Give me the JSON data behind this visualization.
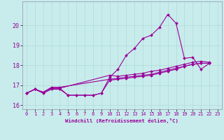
{
  "xlabel": "Windchill (Refroidissement éolien,°C)",
  "background_color": "#c8ecec",
  "grid_color": "#b0d8d8",
  "line_color": "#990099",
  "xlim": [
    -0.5,
    23.5
  ],
  "ylim": [
    15.8,
    21.2
  ],
  "yticks": [
    16,
    17,
    18,
    19,
    20
  ],
  "xticks": [
    0,
    1,
    2,
    3,
    4,
    5,
    6,
    7,
    8,
    9,
    10,
    11,
    12,
    13,
    14,
    15,
    16,
    17,
    18,
    19,
    20,
    21,
    22,
    23
  ],
  "series": [
    {
      "x": [
        0,
        1,
        2,
        3,
        4,
        5,
        6,
        7,
        8,
        9,
        10,
        11,
        12,
        13,
        14,
        15,
        16,
        17,
        18,
        19,
        20,
        21,
        22
      ],
      "y": [
        16.6,
        16.8,
        16.6,
        16.8,
        16.8,
        16.5,
        16.5,
        16.5,
        16.5,
        16.6,
        17.4,
        17.8,
        18.5,
        18.85,
        19.35,
        19.5,
        19.9,
        20.55,
        20.1,
        18.35,
        18.4,
        17.8,
        18.1
      ]
    },
    {
      "x": [
        0,
        1,
        2,
        3,
        4,
        10,
        11,
        12,
        13,
        14,
        15,
        16,
        17,
        18,
        19,
        20,
        21,
        22
      ],
      "y": [
        16.6,
        16.8,
        16.65,
        16.85,
        16.85,
        17.5,
        17.45,
        17.5,
        17.55,
        17.6,
        17.7,
        17.75,
        17.85,
        17.95,
        18.05,
        18.15,
        18.2,
        18.15
      ]
    },
    {
      "x": [
        0,
        1,
        2,
        3,
        4,
        10,
        11,
        12,
        13,
        14,
        15,
        16,
        17,
        18,
        19,
        20,
        21,
        22
      ],
      "y": [
        16.6,
        16.8,
        16.65,
        16.9,
        16.9,
        17.3,
        17.35,
        17.4,
        17.45,
        17.5,
        17.55,
        17.65,
        17.75,
        17.85,
        17.95,
        18.05,
        18.1,
        18.1
      ]
    },
    {
      "x": [
        0,
        1,
        2,
        3,
        4,
        5,
        6,
        7,
        8,
        9,
        10,
        11,
        12,
        13,
        14,
        15,
        16,
        17,
        18,
        19,
        20,
        21,
        22
      ],
      "y": [
        16.6,
        16.8,
        16.65,
        16.85,
        16.85,
        16.5,
        16.5,
        16.5,
        16.5,
        16.6,
        17.25,
        17.3,
        17.35,
        17.4,
        17.45,
        17.5,
        17.6,
        17.7,
        17.8,
        17.95,
        18.05,
        18.1,
        18.1
      ]
    }
  ],
  "figsize": [
    3.2,
    2.0
  ],
  "dpi": 100
}
